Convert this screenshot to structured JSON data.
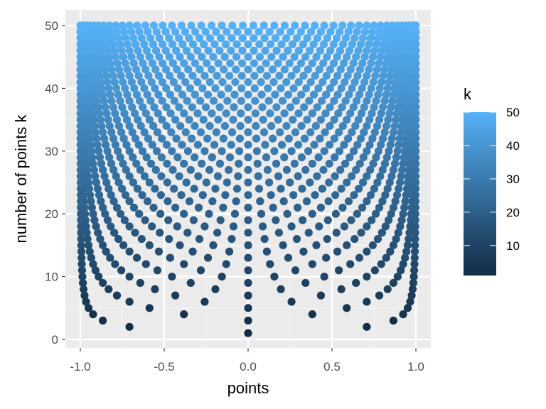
{
  "chart_data": {
    "type": "scatter",
    "description_formula": "for each k in 1..50, points x = cos((2j-1)*pi/(2k)), j = 1..k",
    "k_min": 1,
    "k_max": 50,
    "xlabel": "points",
    "ylabel": "number of points k",
    "xlim": [
      -1.0,
      1.0
    ],
    "ylim": [
      0,
      50
    ],
    "x_ticks": [
      "-1.0",
      "-0.5",
      "0.0",
      "0.5",
      "1.0"
    ],
    "x_tick_values": [
      -1.0,
      -0.5,
      0.0,
      0.5,
      1.0
    ],
    "y_ticks": [
      "0",
      "10",
      "20",
      "30",
      "40",
      "50"
    ],
    "y_tick_values": [
      0,
      10,
      20,
      30,
      40,
      50
    ],
    "grid": true,
    "legend": {
      "title": "k",
      "placement": "right",
      "type": "colorbar",
      "labels": [
        "10",
        "20",
        "30",
        "40",
        "50"
      ],
      "label_values": [
        10,
        20,
        30,
        40,
        50
      ],
      "low_color": "#132B43",
      "high_color": "#56B1F7"
    },
    "colors": {
      "panel_background": "#EBEBEB",
      "grid_major": "#FFFFFF",
      "grid_minor": "#F5F5F5"
    }
  }
}
